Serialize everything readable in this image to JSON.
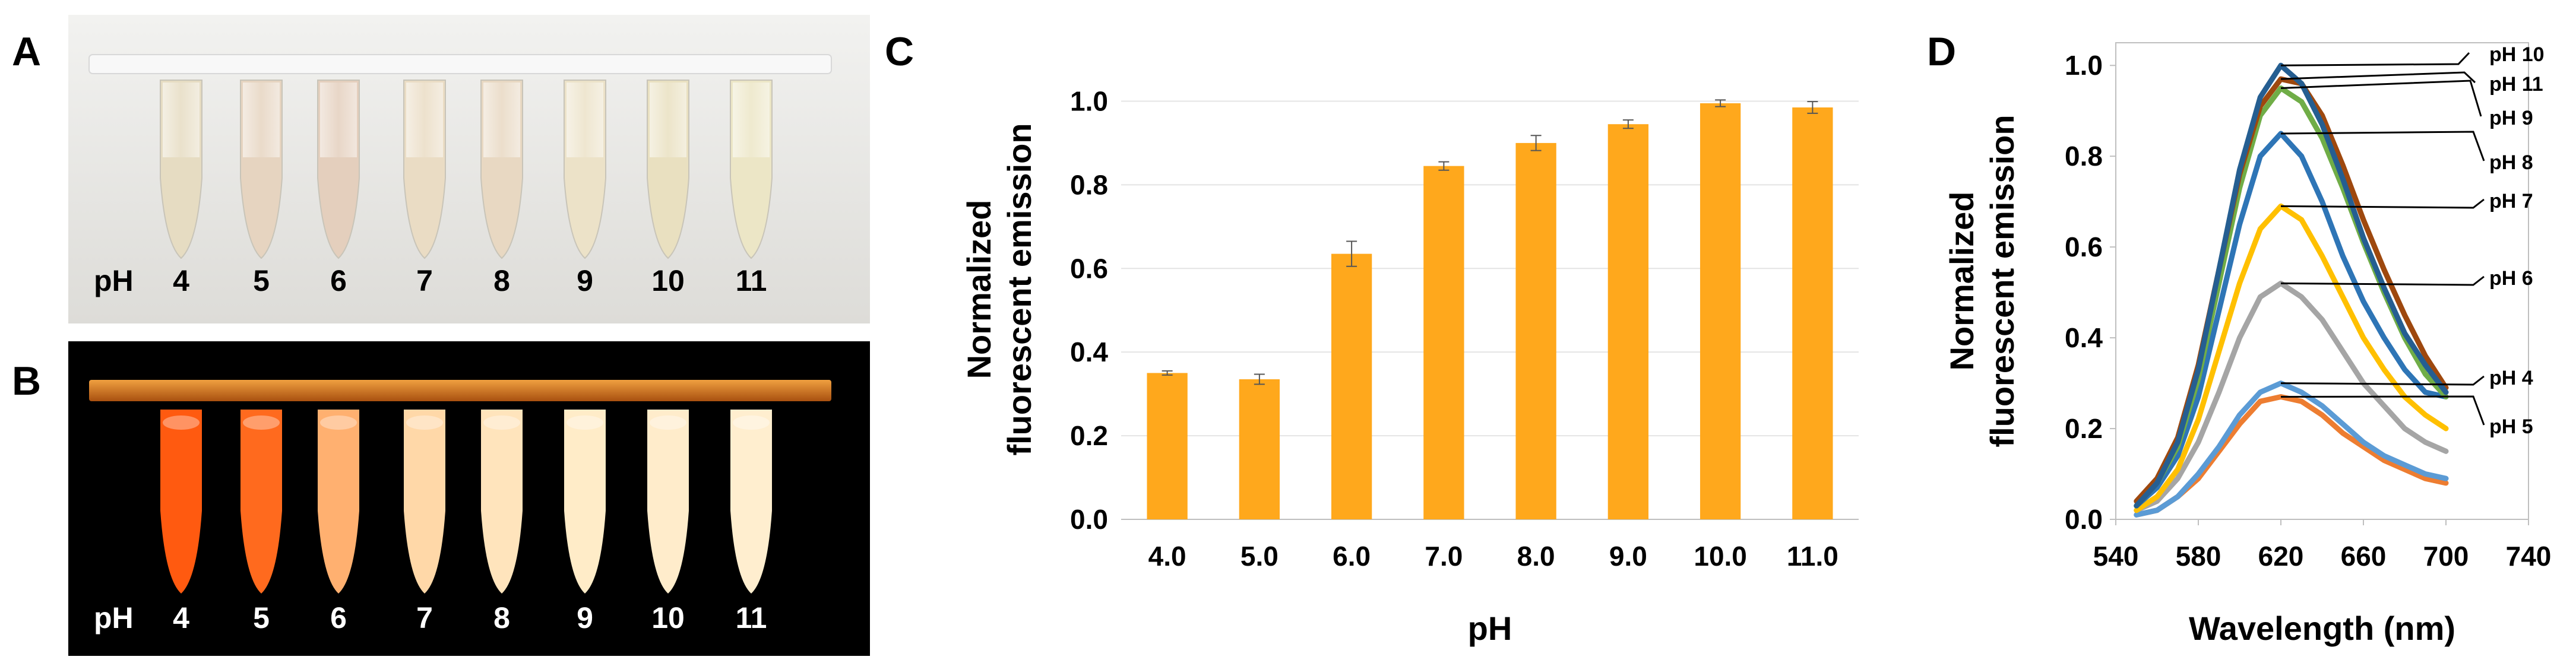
{
  "panels": {
    "A": {
      "letter": "A",
      "ph_prefix": "pH",
      "tube_labels": [
        "4",
        "5",
        "6",
        "7",
        "8",
        "9",
        "10",
        "11"
      ]
    },
    "B": {
      "letter": "B",
      "ph_prefix": "pH",
      "tube_labels": [
        "4",
        "5",
        "6",
        "7",
        "8",
        "9",
        "10",
        "11"
      ]
    },
    "C": {
      "letter": "C"
    },
    "D": {
      "letter": "D"
    }
  },
  "tube_colors": {
    "A": [
      "#e6dcc2",
      "#e6d4c0",
      "#e4cfbd",
      "#eadcc4",
      "#e8d8c2",
      "#ece2c8",
      "#e9e0c0",
      "#ece6c6"
    ],
    "B": [
      "#ff5a10",
      "#ff6a1e",
      "#ffb070",
      "#ffd8a8",
      "#ffe4bc",
      "#ffecc8",
      "#ffeccb",
      "#ffeecf"
    ]
  },
  "chart_data": [
    {
      "type": "bar",
      "title": "",
      "xlabel": "pH",
      "ylabel_lines": [
        "Normalized",
        "fluorescent emission"
      ],
      "categories": [
        "4.0",
        "5.0",
        "6.0",
        "7.0",
        "8.0",
        "9.0",
        "10.0",
        "11.0"
      ],
      "values": [
        0.35,
        0.335,
        0.635,
        0.845,
        0.9,
        0.945,
        0.995,
        0.985
      ],
      "errors": [
        0.005,
        0.012,
        0.03,
        0.01,
        0.018,
        0.01,
        0.008,
        0.014
      ],
      "ylim": [
        0,
        1.1
      ],
      "yticks": [
        "0.0",
        "0.2",
        "0.4",
        "0.6",
        "0.8",
        "1.0"
      ],
      "ytick_values": [
        0,
        0.2,
        0.4,
        0.6,
        0.8,
        1.0
      ],
      "color": "#ffa81c",
      "grid": true
    },
    {
      "type": "line",
      "title": "",
      "xlabel": "Wavelength (nm)",
      "ylabel_lines": [
        "Normalized",
        "fluorescent emission"
      ],
      "xlim": [
        540,
        740
      ],
      "ylim": [
        0,
        1.05
      ],
      "xticks": [
        "540",
        "580",
        "620",
        "660",
        "700",
        "740"
      ],
      "xtick_values": [
        540,
        580,
        620,
        660,
        700,
        740
      ],
      "yticks": [
        "0.0",
        "0.2",
        "0.4",
        "0.6",
        "0.8",
        "1.0"
      ],
      "ytick_values": [
        0,
        0.2,
        0.4,
        0.6,
        0.8,
        1.0
      ],
      "x": [
        550,
        560,
        570,
        580,
        590,
        600,
        610,
        620,
        630,
        640,
        650,
        660,
        670,
        680,
        690,
        700
      ],
      "series": [
        {
          "name": "pH 10",
          "color": "#255e91",
          "peak": [
            620,
            1.0
          ],
          "values": [
            0.03,
            0.08,
            0.17,
            0.33,
            0.55,
            0.77,
            0.93,
            1.0,
            0.96,
            0.87,
            0.75,
            0.62,
            0.51,
            0.41,
            0.34,
            0.28
          ]
        },
        {
          "name": "pH 11",
          "color": "#9e480e",
          "peak": [
            620,
            0.97
          ],
          "values": [
            0.04,
            0.09,
            0.18,
            0.34,
            0.55,
            0.76,
            0.91,
            0.97,
            0.96,
            0.89,
            0.78,
            0.66,
            0.55,
            0.45,
            0.36,
            0.29
          ]
        },
        {
          "name": "pH 9",
          "color": "#70ad47",
          "peak": [
            620,
            0.95
          ],
          "values": [
            0.03,
            0.08,
            0.16,
            0.31,
            0.52,
            0.73,
            0.89,
            0.95,
            0.92,
            0.84,
            0.73,
            0.61,
            0.5,
            0.4,
            0.32,
            0.27
          ]
        },
        {
          "name": "pH 8",
          "color": "#2e75b6",
          "peak": [
            620,
            0.85
          ],
          "values": [
            0.03,
            0.07,
            0.14,
            0.27,
            0.46,
            0.65,
            0.8,
            0.85,
            0.8,
            0.7,
            0.58,
            0.48,
            0.4,
            0.33,
            0.28,
            0.27
          ]
        },
        {
          "name": "pH 7",
          "color": "#ffc000",
          "peak": [
            620,
            0.69
          ],
          "values": [
            0.02,
            0.05,
            0.11,
            0.22,
            0.37,
            0.52,
            0.64,
            0.69,
            0.66,
            0.58,
            0.49,
            0.4,
            0.33,
            0.27,
            0.23,
            0.2
          ]
        },
        {
          "name": "pH 6",
          "color": "#a5a5a5",
          "peak": [
            620,
            0.52
          ],
          "values": [
            0.02,
            0.04,
            0.09,
            0.17,
            0.28,
            0.4,
            0.49,
            0.52,
            0.49,
            0.44,
            0.37,
            0.3,
            0.25,
            0.2,
            0.17,
            0.15
          ]
        },
        {
          "name": "pH 4",
          "color": "#5b9bd5",
          "peak": [
            620,
            0.3
          ],
          "values": [
            0.01,
            0.02,
            0.05,
            0.1,
            0.16,
            0.23,
            0.28,
            0.3,
            0.28,
            0.25,
            0.21,
            0.17,
            0.14,
            0.12,
            0.1,
            0.09
          ]
        },
        {
          "name": "pH 5",
          "color": "#ed7d31",
          "peak": [
            620,
            0.27
          ],
          "values": [
            0.01,
            0.02,
            0.05,
            0.09,
            0.15,
            0.21,
            0.26,
            0.27,
            0.26,
            0.23,
            0.19,
            0.16,
            0.13,
            0.11,
            0.09,
            0.08
          ]
        }
      ],
      "legend_order": [
        "pH 10",
        "pH 11",
        "pH 9",
        "pH 8",
        "pH 7",
        "pH 6",
        "pH 4",
        "pH 5"
      ]
    }
  ]
}
